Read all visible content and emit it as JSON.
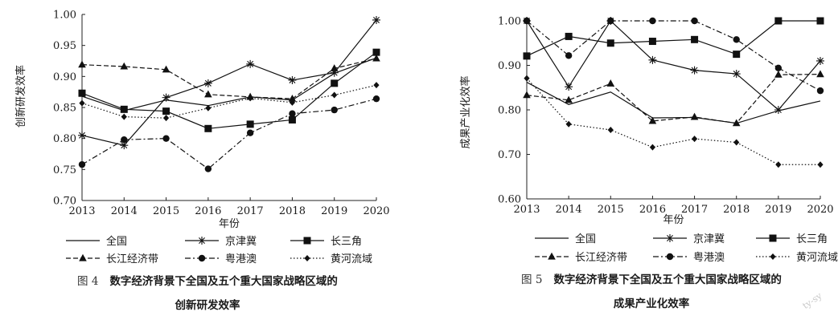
{
  "watermark": "ty-sy",
  "chart_data": [
    {
      "type": "line",
      "ylabel": "创新研发效率",
      "xlabel": "年份",
      "x": [
        "2013",
        "2014",
        "2015",
        "2016",
        "2017",
        "2018",
        "2019",
        "2020"
      ],
      "ylim": [
        0.7,
        1.0
      ],
      "yticks": [
        "0.70",
        "0.75",
        "0.80",
        "0.85",
        "0.90",
        "0.95",
        "1.00"
      ],
      "grid": false,
      "legend_position": "bottom",
      "caption_number": "图 4",
      "caption_line1": "数字经济背景下全国及五个重大国家战略区域的",
      "caption_line2": "创新研发效率",
      "series": [
        {
          "name": "全国",
          "style": "solid",
          "marker": "none",
          "values": [
            0.868,
            0.845,
            0.862,
            0.853,
            0.867,
            0.862,
            0.905,
            0.93
          ]
        },
        {
          "name": "京津冀",
          "style": "solid",
          "marker": "star",
          "values": [
            0.805,
            0.789,
            0.866,
            0.889,
            0.92,
            0.894,
            0.906,
            0.991
          ]
        },
        {
          "name": "长三角",
          "style": "solid",
          "marker": "square",
          "values": [
            0.873,
            0.847,
            0.844,
            0.816,
            0.823,
            0.83,
            0.889,
            0.939
          ]
        },
        {
          "name": "长江经济带",
          "style": "dash",
          "marker": "triangle",
          "values": [
            0.919,
            0.916,
            0.911,
            0.871,
            0.867,
            0.864,
            0.913,
            0.929
          ]
        },
        {
          "name": "粤港澳",
          "style": "dashdot",
          "marker": "circle",
          "values": [
            0.758,
            0.798,
            0.8,
            0.751,
            0.809,
            0.84,
            0.846,
            0.864
          ]
        },
        {
          "name": "黄河流域",
          "style": "dot",
          "marker": "diamond",
          "values": [
            0.857,
            0.835,
            0.833,
            0.849,
            0.865,
            0.858,
            0.87,
            0.886
          ]
        }
      ]
    },
    {
      "type": "line",
      "ylabel": "成果产业化效率",
      "xlabel": "年份",
      "x": [
        "2013",
        "2014",
        "2015",
        "2016",
        "2017",
        "2018",
        "2019",
        "2020"
      ],
      "ylim": [
        0.6,
        1.0
      ],
      "yticks": [
        "0.60",
        "0.70",
        "0.80",
        "0.90",
        "1.00"
      ],
      "grid": false,
      "legend_position": "bottom",
      "caption_number": "图 5",
      "caption_line1": "数字经济背景下全国及五个重大国家战略区域的",
      "caption_line2": "成果产业化效率",
      "series": [
        {
          "name": "全国",
          "style": "solid",
          "marker": "none",
          "values": [
            0.862,
            0.812,
            0.84,
            0.782,
            0.783,
            0.77,
            0.798,
            0.82
          ]
        },
        {
          "name": "京津冀",
          "style": "solid",
          "marker": "star",
          "values": [
            1.0,
            0.852,
            1.0,
            0.912,
            0.889,
            0.881,
            0.8,
            0.91
          ]
        },
        {
          "name": "长三角",
          "style": "solid",
          "marker": "square",
          "values": [
            0.921,
            0.965,
            0.95,
            0.954,
            0.958,
            0.925,
            1.0,
            1.0
          ]
        },
        {
          "name": "长江经济带",
          "style": "dash",
          "marker": "triangle",
          "values": [
            0.833,
            0.822,
            0.859,
            0.775,
            0.784,
            0.77,
            0.879,
            0.88
          ]
        },
        {
          "name": "粤港澳",
          "style": "dashdot",
          "marker": "circle",
          "values": [
            1.0,
            0.922,
            1.0,
            1.0,
            1.0,
            0.958,
            0.894,
            0.843
          ]
        },
        {
          "name": "黄河流域",
          "style": "dot",
          "marker": "diamond",
          "values": [
            0.871,
            0.768,
            0.755,
            0.716,
            0.735,
            0.727,
            0.677,
            0.677
          ]
        }
      ]
    }
  ]
}
